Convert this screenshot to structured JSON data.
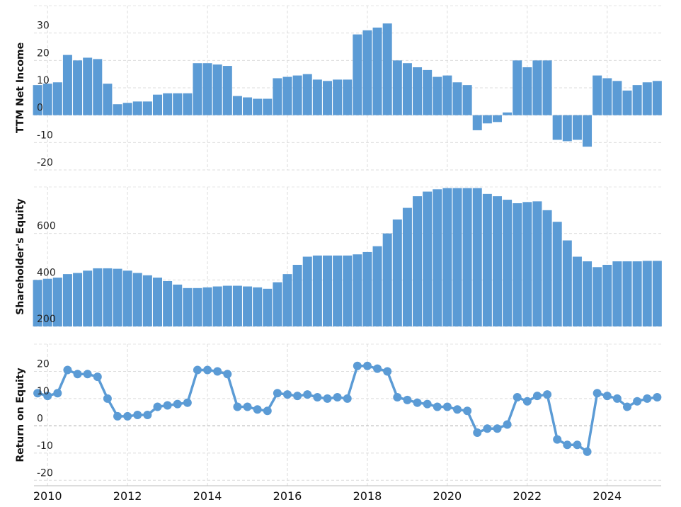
{
  "chart_data": [
    {
      "type": "bar",
      "ylabel": "TTM Net Income",
      "color": "#5b9bd5",
      "x": [
        2009.75,
        2010,
        2010.25,
        2010.5,
        2010.75,
        2011,
        2011.25,
        2011.5,
        2011.75,
        2012,
        2012.25,
        2012.5,
        2012.75,
        2013,
        2013.25,
        2013.5,
        2013.75,
        2014,
        2014.25,
        2014.5,
        2014.75,
        2015,
        2015.25,
        2015.5,
        2015.75,
        2016,
        2016.25,
        2016.5,
        2016.75,
        2017,
        2017.25,
        2017.5,
        2017.75,
        2018,
        2018.25,
        2018.5,
        2018.75,
        2019,
        2019.25,
        2019.5,
        2019.75,
        2020,
        2020.25,
        2020.5,
        2020.75,
        2021,
        2021.25,
        2021.5,
        2021.75,
        2022,
        2022.25,
        2022.5,
        2022.75,
        2023,
        2023.25,
        2023.5,
        2023.75,
        2024,
        2024.25,
        2024.5,
        2024.75,
        2025,
        2025.25
      ],
      "values": [
        11,
        11.5,
        12,
        22,
        20,
        21,
        20.5,
        11.5,
        4,
        4.5,
        5,
        5,
        7.5,
        8,
        8,
        8,
        19,
        19,
        18.5,
        18,
        7,
        6.5,
        6,
        6,
        13.5,
        14,
        14.5,
        15,
        13,
        12.5,
        13,
        13,
        29.5,
        31,
        32,
        33.5,
        20,
        19,
        17.5,
        16.5,
        14,
        14.5,
        12,
        11,
        -5.5,
        -3,
        -2.5,
        1,
        20,
        17.5,
        20,
        20,
        -9,
        -9.5,
        -9,
        -11.5,
        14.5,
        13.5,
        12.5,
        9,
        11,
        12,
        12.5
      ],
      "xlim": [
        2009.66,
        2025.35
      ],
      "xticks": [
        2010,
        2012,
        2014,
        2016,
        2018,
        2020,
        2022,
        2024
      ],
      "ylim": [
        -20,
        40
      ],
      "yticks": [
        -20,
        -10,
        0,
        10,
        20,
        30
      ],
      "grid": true
    },
    {
      "type": "bar",
      "ylabel": "Shareholder's Equity",
      "color": "#5b9bd5",
      "x": [
        2009.75,
        2010,
        2010.25,
        2010.5,
        2010.75,
        2011,
        2011.25,
        2011.5,
        2011.75,
        2012,
        2012.25,
        2012.5,
        2012.75,
        2013,
        2013.25,
        2013.5,
        2013.75,
        2014,
        2014.25,
        2014.5,
        2014.75,
        2015,
        2015.25,
        2015.5,
        2015.75,
        2016,
        2016.25,
        2016.5,
        2016.75,
        2017,
        2017.25,
        2017.5,
        2017.75,
        2018,
        2018.25,
        2018.5,
        2018.75,
        2019,
        2019.25,
        2019.5,
        2019.75,
        2020,
        2020.25,
        2020.5,
        2020.75,
        2021,
        2021.25,
        2021.5,
        2021.75,
        2022,
        2022.25,
        2022.5,
        2022.75,
        2023,
        2023.25,
        2023.5,
        2023.75,
        2024,
        2024.25,
        2024.5,
        2024.75,
        2025,
        2025.25
      ],
      "values": [
        400,
        405,
        410,
        425,
        430,
        440,
        450,
        450,
        448,
        440,
        430,
        420,
        410,
        395,
        380,
        365,
        365,
        368,
        372,
        375,
        375,
        372,
        368,
        362,
        390,
        425,
        465,
        500,
        505,
        505,
        505,
        505,
        510,
        520,
        545,
        600,
        660,
        710,
        760,
        780,
        790,
        795,
        795,
        795,
        795,
        770,
        760,
        745,
        730,
        735,
        738,
        700,
        650,
        570,
        500,
        480,
        455,
        465,
        480,
        480,
        480,
        482,
        482
      ],
      "xlim": [
        2009.66,
        2025.35
      ],
      "xticks": [
        2010,
        2012,
        2014,
        2016,
        2018,
        2020,
        2022,
        2024
      ],
      "ylim": [
        200,
        800
      ],
      "yticks": [
        200,
        400,
        600
      ],
      "grid": true
    },
    {
      "type": "line",
      "ylabel": "Return on Equity",
      "color": "#5b9bd5",
      "x": [
        2009.75,
        2010,
        2010.25,
        2010.5,
        2010.75,
        2011,
        2011.25,
        2011.5,
        2011.75,
        2012,
        2012.25,
        2012.5,
        2012.75,
        2013,
        2013.25,
        2013.5,
        2013.75,
        2014,
        2014.25,
        2014.5,
        2014.75,
        2015,
        2015.25,
        2015.5,
        2015.75,
        2016,
        2016.25,
        2016.5,
        2016.75,
        2017,
        2017.25,
        2017.5,
        2017.75,
        2018,
        2018.25,
        2018.5,
        2018.75,
        2019,
        2019.25,
        2019.5,
        2019.75,
        2020,
        2020.25,
        2020.5,
        2020.75,
        2021,
        2021.25,
        2021.5,
        2021.75,
        2022,
        2022.25,
        2022.5,
        2022.75,
        2023,
        2023.25,
        2023.5,
        2023.75,
        2024,
        2024.25,
        2024.5,
        2024.75,
        2025,
        2025.25
      ],
      "values": [
        12,
        11,
        12,
        20.5,
        19,
        19,
        18,
        10,
        3.5,
        3.5,
        4,
        4,
        7,
        7.5,
        8,
        8.5,
        20.5,
        20.5,
        20,
        19,
        7,
        7,
        6,
        5.5,
        12,
        11.5,
        11,
        11.5,
        10.5,
        10,
        10.5,
        10,
        22,
        22,
        21,
        20,
        10.5,
        9.5,
        8.5,
        8,
        7,
        7,
        6,
        5.5,
        -2.5,
        -1,
        -1,
        0.5,
        10.5,
        9,
        11,
        11.5,
        -5,
        -7,
        -7,
        -9.5,
        12,
        11,
        10,
        7,
        9,
        10,
        10.5
      ],
      "xlim": [
        2009.66,
        2025.35
      ],
      "xticks": [
        2010,
        2012,
        2014,
        2016,
        2018,
        2020,
        2022,
        2024
      ],
      "ylim": [
        -22,
        30
      ],
      "yticks": [
        -20,
        -10,
        0,
        10,
        20
      ],
      "grid": true
    }
  ]
}
